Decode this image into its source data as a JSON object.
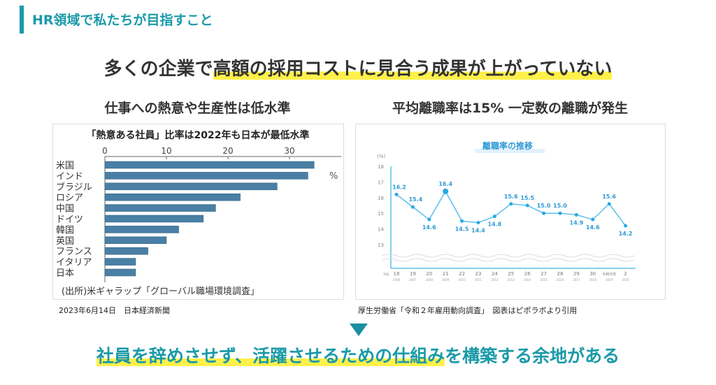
{
  "header": {
    "title": "HR領域で私たちが目指すこと"
  },
  "headline": {
    "pre": "多くの企業で",
    "highlight": "高額の採用コストに見合う成果が上がっていない"
  },
  "left": {
    "heading": "仕事への熱意や生産性は低水準",
    "caption": "2023年6月14日　日本経済新聞"
  },
  "right": {
    "heading": "平均離職率は15% 一定数の離職が発生",
    "caption": "厚生労働省「令和２年雇用動向調査」　図表はピポラボより引用"
  },
  "conclusion": {
    "highlight": "社員を辞めさせず、活躍させるための仕組み",
    "post": "を構築する余地がある"
  },
  "colors": {
    "accent": "#1a9aa8",
    "highlight": "#fff04a",
    "bar": "#4a7fa5",
    "line": "#5bc0ec"
  },
  "chart_data": [
    {
      "type": "bar",
      "orientation": "horizontal",
      "title": "「熱意ある社員」比率は2022年も日本が最低水準",
      "unit": "%",
      "source": "(出所)米ギャラップ「グローバル職場環境調査」",
      "xticks": [
        0,
        10,
        20,
        30
      ],
      "xlim": [
        0,
        36
      ],
      "categories": [
        "米国",
        "インド",
        "ブラジル",
        "ロシア",
        "中国",
        "ドイツ",
        "韓国",
        "英国",
        "フランス",
        "イタリア",
        "日本"
      ],
      "values": [
        34,
        33,
        28,
        22,
        18,
        16,
        12,
        10,
        7,
        5,
        5
      ]
    },
    {
      "type": "line",
      "title": "離職率の推移",
      "ylabel": "(%)",
      "yticks": [
        13,
        14,
        15,
        16,
        17,
        18
      ],
      "ylim": [
        12,
        18
      ],
      "categories": [
        "18",
        "19",
        "20",
        "21",
        "22",
        "23",
        "24",
        "25",
        "26",
        "27",
        "28",
        "29",
        "30",
        "令和元年",
        "2"
      ],
      "era_prefix": "平成",
      "years": [
        "2006",
        "2007",
        "2008",
        "2009",
        "2010",
        "2011",
        "2012",
        "2013",
        "2014",
        "2015",
        "2016",
        "2017",
        "2018",
        "2019",
        "2020"
      ],
      "values": [
        16.2,
        15.4,
        14.6,
        16.4,
        14.5,
        14.4,
        14.8,
        15.6,
        15.5,
        15.0,
        15.0,
        14.9,
        14.6,
        15.6,
        14.2
      ],
      "labels": [
        "16.2",
        "15.4",
        "14.6",
        "16.4",
        "14.5",
        "14.4",
        "14.8",
        "15.6",
        "15.5",
        "15.0",
        "15.0",
        "14.9",
        "14.6",
        "15.6",
        "14.2"
      ]
    }
  ]
}
